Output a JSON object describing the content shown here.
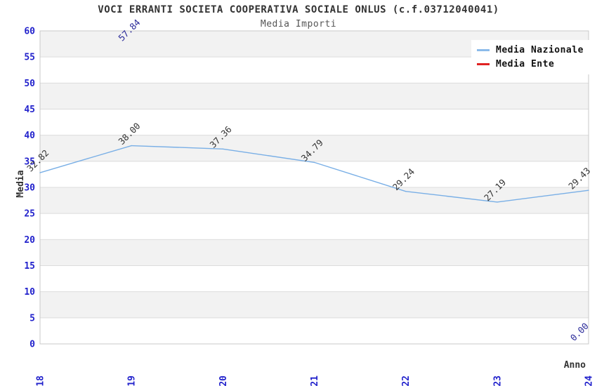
{
  "title": "VOCI ERRANTI SOCIETA COOPERATIVA SOCIALE ONLUS (c.f.03712040041)",
  "subtitle": "Media Importi",
  "legend": {
    "items": [
      {
        "label": "Media Nazionale",
        "color": "#8cbbea"
      },
      {
        "label": "Media Ente",
        "color": "#e02222"
      }
    ]
  },
  "axes": {
    "y_title": "Media",
    "x_title": "Anno",
    "y_ticks": [
      0,
      5,
      10,
      15,
      20,
      25,
      30,
      35,
      40,
      45,
      50,
      55,
      60
    ],
    "x_ticks": [
      "2018",
      "2019",
      "2020",
      "2021",
      "2022",
      "2023",
      "2024"
    ],
    "tick_color": "#2222cc"
  },
  "chart_data": {
    "type": "line",
    "x": [
      "2018",
      "2019",
      "2020",
      "2021",
      "2022",
      "2023",
      "2024"
    ],
    "series": [
      {
        "name": "Media Nazionale",
        "color": "#79afe6",
        "values": [
          32.82,
          38.0,
          37.36,
          34.79,
          29.24,
          27.19,
          29.43
        ],
        "labels": [
          "32.82",
          "38.00",
          "37.36",
          "34.79",
          "29.24",
          "27.19",
          "29.43"
        ],
        "label_color": "#333333"
      },
      {
        "name": "Media Ente",
        "color": "#e02222",
        "values": [
          null,
          57.84,
          null,
          null,
          null,
          null,
          0.0
        ],
        "labels": [
          null,
          "57.84",
          null,
          null,
          null,
          null,
          "0.00"
        ],
        "label_color": "#2a2a99"
      }
    ],
    "ylim": [
      0,
      60
    ],
    "y_tick_step": 5,
    "grid": "horizontal-bands",
    "band_colors": [
      "#f2f2f2",
      "#ffffff"
    ],
    "gridline_color": "#dcdcdc",
    "plot_border_color": "#c9c9c9",
    "legend_position": "top-right"
  }
}
